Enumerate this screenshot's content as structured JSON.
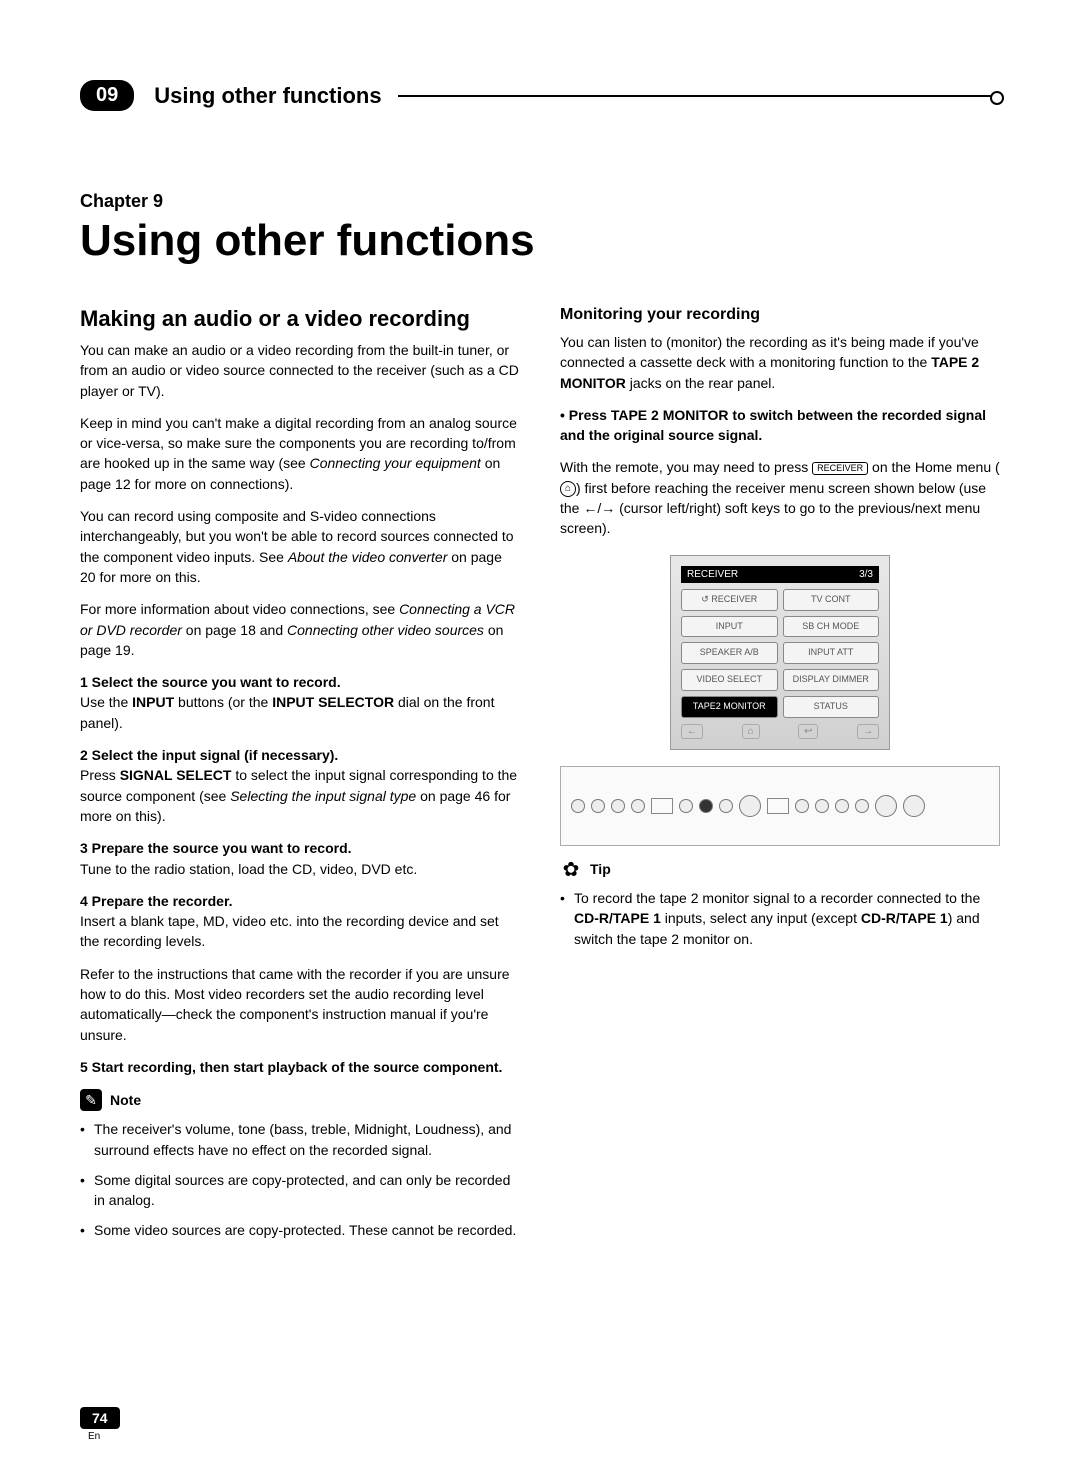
{
  "header": {
    "badge": "09",
    "title": "Using other functions"
  },
  "chapter_label": "Chapter 9",
  "main_title": "Using other functions",
  "left": {
    "h2": "Making an audio or a video recording",
    "p1": "You can make an audio or a video recording from the built-in tuner, or from an audio or video source connected to the receiver (such as a CD player or TV).",
    "p2a": "Keep in mind you can't make a digital recording from an analog source or vice-versa, so make sure the components you are recording to/from are hooked up in the same way (see ",
    "p2i": "Connecting your equipment",
    "p2b": " on page 12 for more on connections).",
    "p3a": "You can record using composite and S-video connections interchangeably, but you won't be able to record sources connected to the component video inputs. See ",
    "p3i": "About the video converter",
    "p3b": " on page 20 for more on this.",
    "p4a": "For more information about video connections, see ",
    "p4i1": "Connecting a VCR or DVD recorder",
    "p4m": " on page 18 and ",
    "p4i2": "Connecting other video sources",
    "p4b": " on page 19.",
    "s1_bold": "1    Select the source you want to record.",
    "s1_text_a": "Use the ",
    "s1_b1": "INPUT",
    "s1_text_b": " buttons (or the ",
    "s1_b2": "INPUT SELECTOR",
    "s1_text_c": " dial on the front panel).",
    "s2_bold": "2    Select the input signal (if necessary).",
    "s2_text_a": "Press ",
    "s2_b1": "SIGNAL SELECT",
    "s2_text_b": " to select the input signal corresponding to the source component (see ",
    "s2_i": "Selecting the input signal type",
    "s2_text_c": " on page 46 for more on this).",
    "s3_bold": "3    Prepare the source you want to record.",
    "s3_text": "Tune to the radio station, load the CD, video, DVD etc.",
    "s4_bold": "4    Prepare the recorder.",
    "s4_text": "Insert a blank tape, MD, video etc. into the recording device and set the recording levels.",
    "s4_text2": "Refer to the instructions that came with the recorder if you are unsure how to do this. Most video recorders set the audio recording level automatically—check the component's instruction manual if you're unsure.",
    "s5_bold": "5    Start recording, then start playback of the source component.",
    "note_label": "Note",
    "note1": "The receiver's volume, tone (bass, treble, Midnight, Loudness), and surround effects have no effect on the recorded signal.",
    "note2": "Some digital sources are copy-protected, and can only be recorded in analog.",
    "note3": "Some video sources are copy-protected. These cannot be recorded."
  },
  "right": {
    "h3": "Monitoring your recording",
    "p1a": "You can listen to (monitor) the recording as it's being made if you've connected a cassette deck with a monitoring function to the ",
    "p1b": "TAPE 2 MONITOR",
    "p1c": " jacks on the rear panel.",
    "bullet_bold": "•    Press TAPE 2 MONITOR to switch between the recorded signal and the original source signal.",
    "p2a": "With the remote, you may need to press ",
    "p2_icon": "RECEIVER",
    "p2b": " on the Home menu (",
    "p2_home": "⌂",
    "p2c": ") first before reaching the receiver menu screen shown below (use the ←/→ (cursor left/right) soft keys to go to the previous/next menu screen).",
    "remote": {
      "header_l": "RECEIVER",
      "header_r": "3/3",
      "btns": [
        "↺ RECEIVER",
        "TV CONT",
        "INPUT",
        "SB CH MODE",
        "SPEAKER A/B",
        "INPUT ATT",
        "VIDEO SELECT",
        "DISPLAY DIMMER",
        "TAPE2 MONITOR",
        "STATUS"
      ],
      "nav_l": "←",
      "nav_home": "⌂",
      "nav_back": "↩",
      "nav_r": "→"
    },
    "tip_label": "Tip",
    "tip1a": "To record the tape 2 monitor signal to a recorder connected to the ",
    "tip1b": "CD-R/TAPE 1",
    "tip1c": " inputs, select any input (except ",
    "tip1d": "CD-R/TAPE 1",
    "tip1e": ") and switch the tape 2 monitor on."
  },
  "footer": {
    "page": "74",
    "lang": "En"
  },
  "style": {
    "page_bg": "#ffffff",
    "text_color": "#000000",
    "badge_bg": "#000000",
    "badge_fg": "#ffffff",
    "body_fontsize": 14,
    "h2_fontsize": 22,
    "h3_fontsize": 16,
    "title_fontsize": 44
  }
}
